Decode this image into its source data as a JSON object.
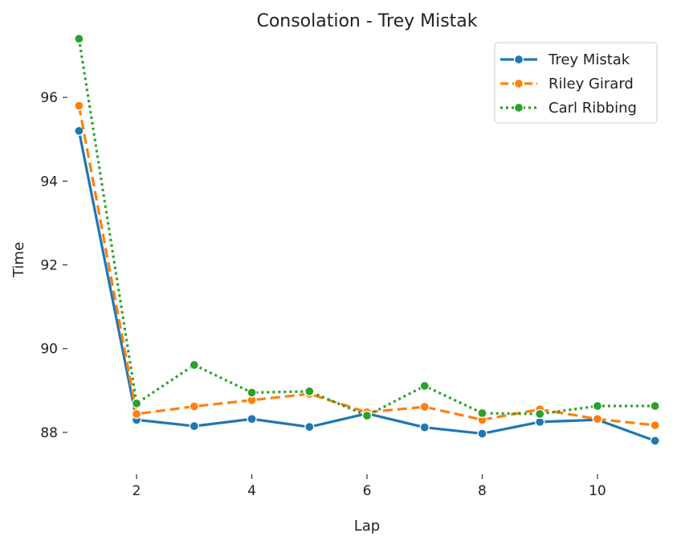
{
  "chart_data": {
    "type": "line",
    "title": "Consolation - Trey Mistak",
    "xlabel": "Lap",
    "ylabel": "Time",
    "xlim": [
      0.8,
      11.2
    ],
    "ylim": [
      87.0,
      97.5
    ],
    "xticks": [
      2,
      4,
      6,
      8,
      10
    ],
    "yticks": [
      88,
      90,
      92,
      94,
      96
    ],
    "grid": false,
    "legend_position": "top-right",
    "x": [
      1,
      2,
      3,
      4,
      5,
      6,
      7,
      8,
      9,
      10,
      11
    ],
    "series": [
      {
        "name": "Trey Mistak",
        "color": "#1f77b4",
        "dash": "solid",
        "values": [
          95.2,
          88.3,
          88.15,
          88.32,
          88.13,
          88.45,
          88.12,
          87.97,
          88.25,
          88.3,
          87.8
        ]
      },
      {
        "name": "Riley Girard",
        "color": "#ff7f0e",
        "dash": "dashed",
        "values": [
          95.8,
          88.44,
          88.62,
          88.77,
          88.92,
          88.48,
          88.61,
          88.3,
          88.55,
          88.32,
          88.17
        ]
      },
      {
        "name": "Carl Ribbing",
        "color": "#2ca02c",
        "dash": "dotted",
        "values": [
          97.4,
          88.69,
          89.61,
          88.95,
          88.98,
          88.4,
          89.11,
          88.46,
          88.44,
          88.63,
          88.63
        ]
      }
    ]
  }
}
